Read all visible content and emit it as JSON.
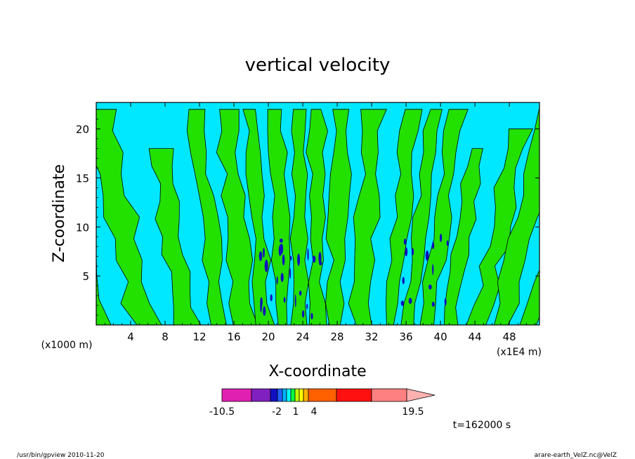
{
  "chart_data": {
    "type": "contour",
    "title": "vertical velocity",
    "xlabel": "X-coordinate",
    "ylabel": "Z-coordinate",
    "x_unit_left": "(x1000 m)",
    "x_unit_right": "(x1E4 m)",
    "x_ticks": [
      "4",
      "8",
      "12",
      "16",
      "20",
      "24",
      "28",
      "32",
      "36",
      "40",
      "44",
      "48"
    ],
    "y_ticks": [
      "5",
      "10",
      "15",
      "20"
    ],
    "xlim": [
      0,
      51.5
    ],
    "ylim": [
      0,
      22.7
    ],
    "time_label": "t=162000 s",
    "colorbar": {
      "labels": [
        "-10.5",
        "-2",
        "1",
        "4",
        "19.5"
      ],
      "colors": [
        "#e020b0",
        "#8020c0",
        "#1010c0",
        "#2060ff",
        "#00b0ff",
        "#00ffff",
        "#00ff40",
        "#c0ff00",
        "#ffff00",
        "#ffb000",
        "#ff6000",
        "#ff1010",
        "#ff8080",
        "#ffb0b0"
      ]
    },
    "field_colors": {
      "background": "#00e8ff",
      "positive": "#22e000",
      "negative": "#1010c0"
    }
  },
  "footer": {
    "left": "/usr/bin/gpview 2010-11-20",
    "right": "arare-earth_VelZ.nc@VelZ"
  }
}
